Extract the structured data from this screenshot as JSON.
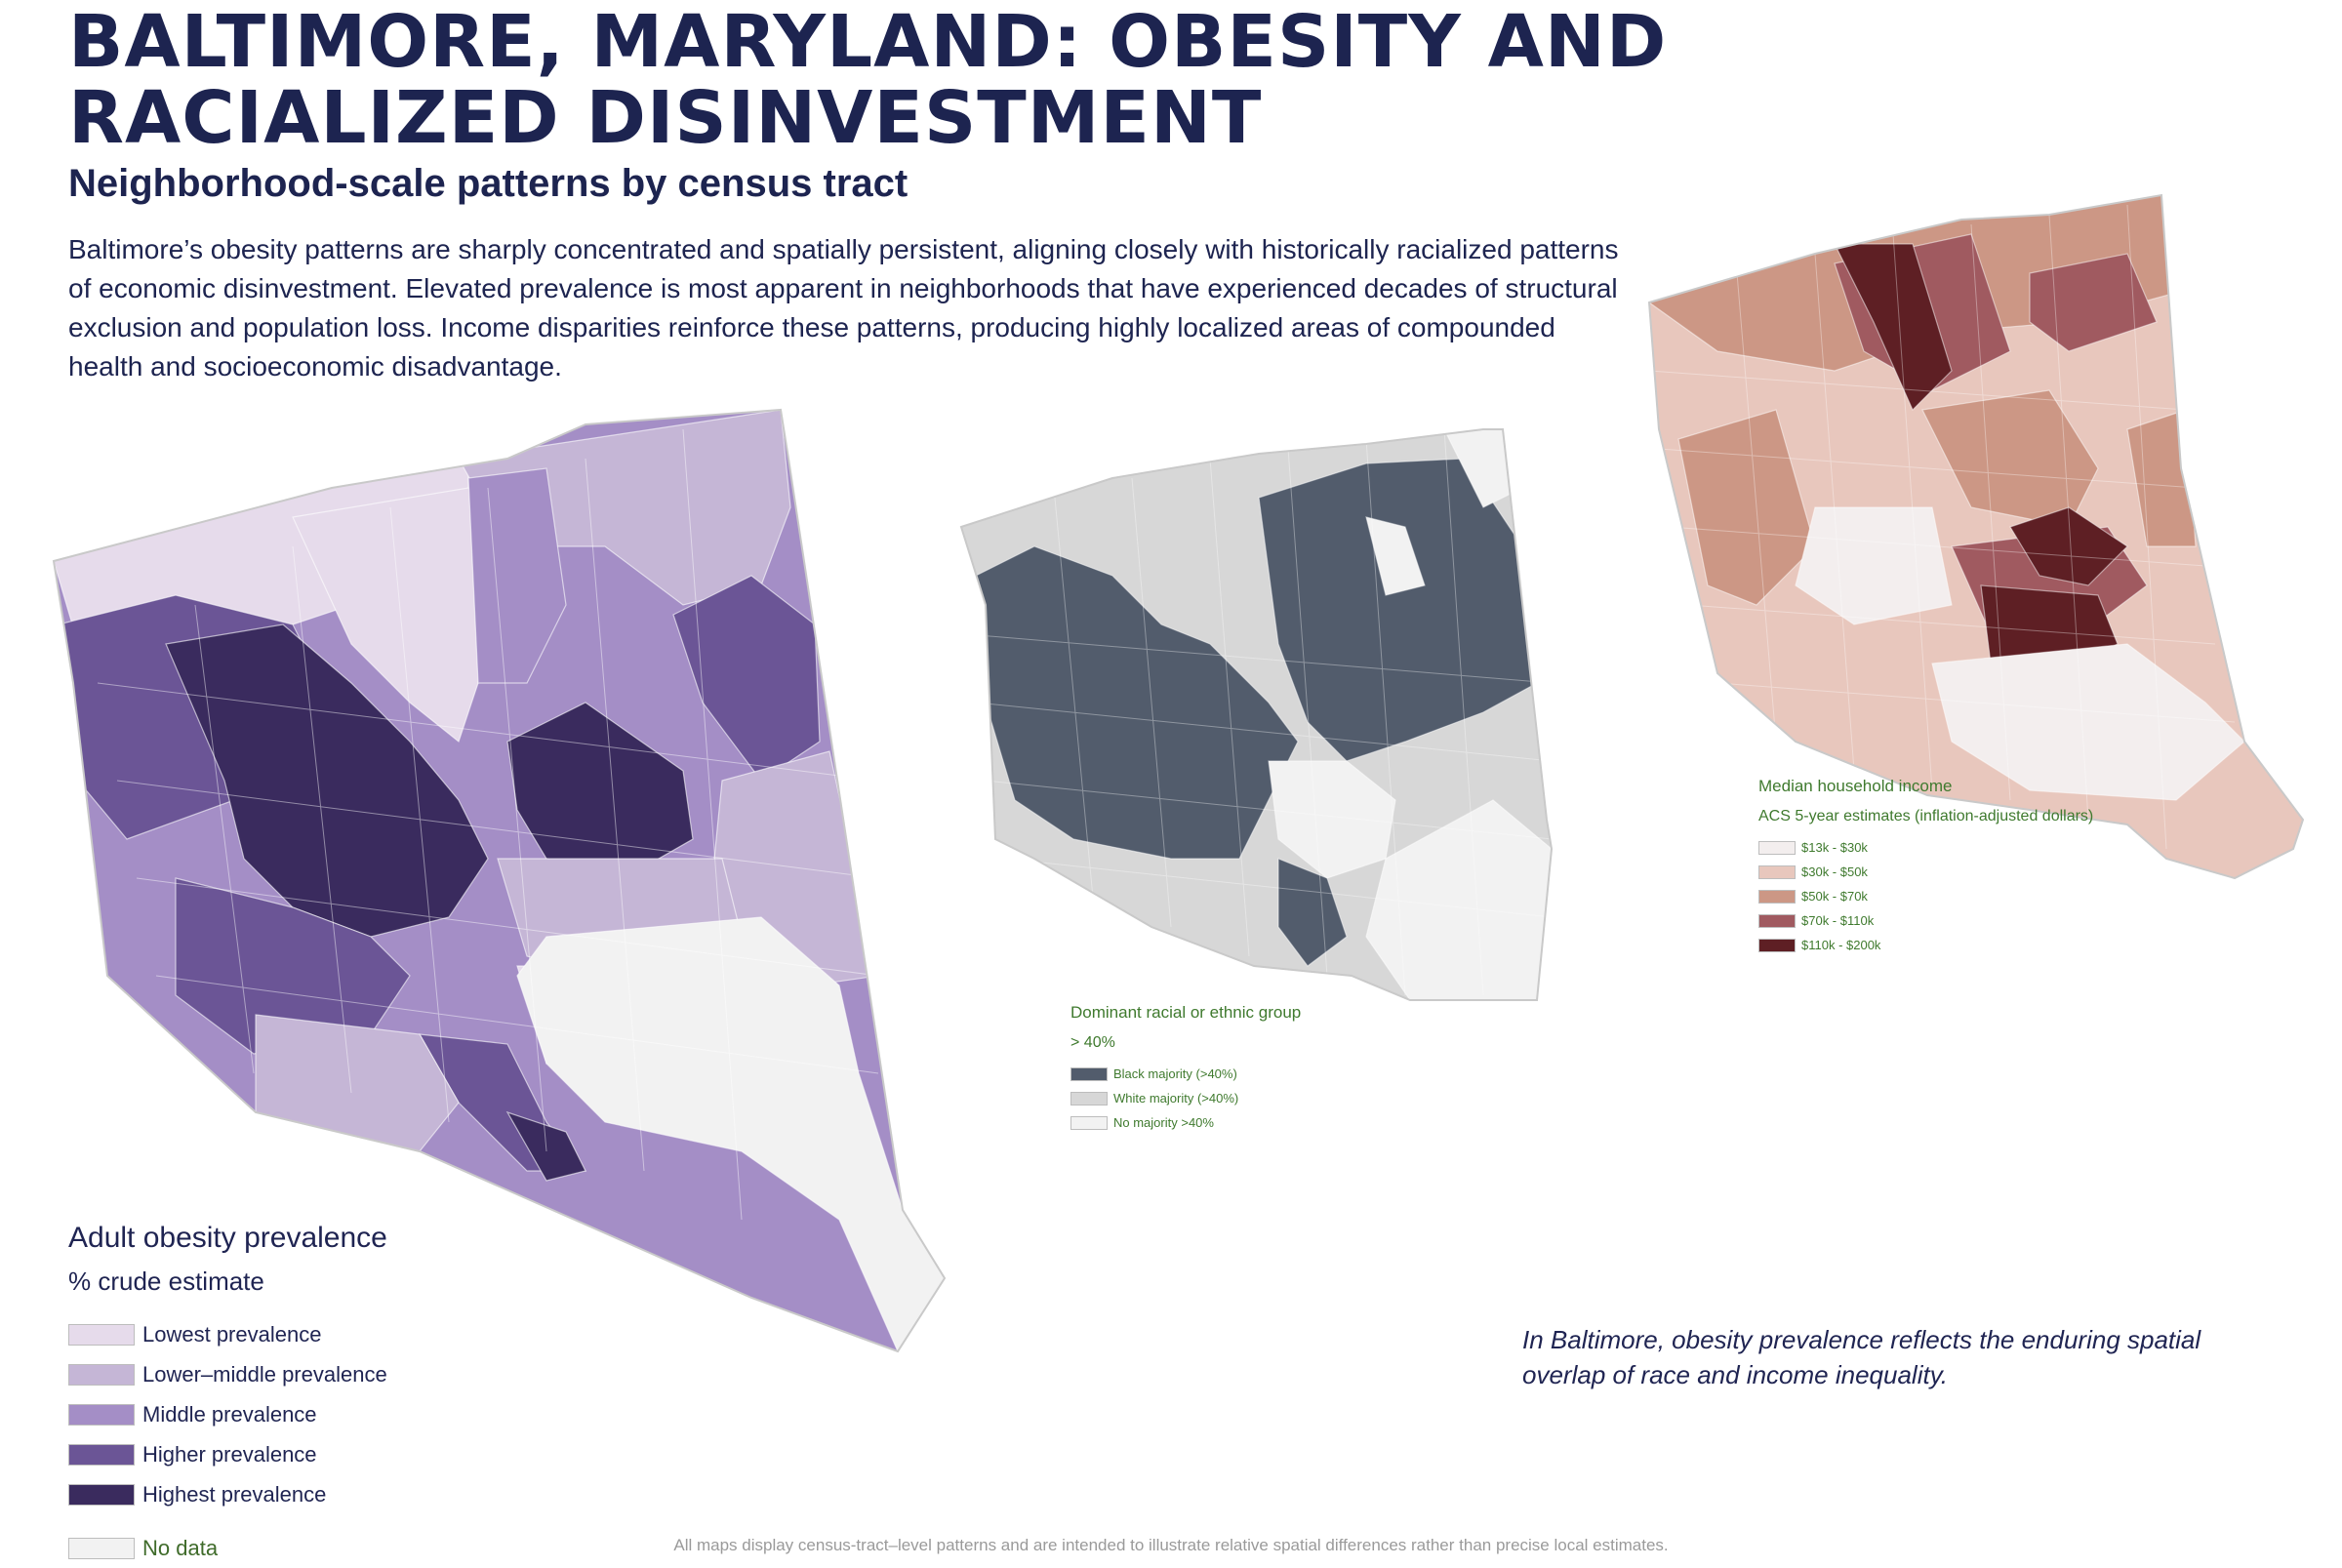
{
  "header": {
    "title": "BALTIMORE, MARYLAND: OBESITY AND RACIALIZED DISINVESTMENT",
    "subtitle": "Neighborhood-scale patterns by census tract",
    "intro": "Baltimore’s obesity patterns are sharply concentrated and spatially persistent, aligning closely with historically racialized patterns of economic disinvestment. Elevated prevalence is most apparent in neighborhoods that have experienced decades of structural exclusion and population loss. Income disparities reinforce these patterns, producing highly localized areas of compounded health and socioeconomic disadvantage."
  },
  "obesity_map": {
    "legend": {
      "title": "Adult obesity prevalence",
      "subtitle": "% crude estimate",
      "classes": [
        {
          "label": "Lowest prevalence",
          "color": "#e6dbeb"
        },
        {
          "label": "Lower–middle prevalence",
          "color": "#c5b6d6"
        },
        {
          "label": "Middle prevalence",
          "color": "#a48ec6"
        },
        {
          "label": "Higher prevalence",
          "color": "#6b5596"
        },
        {
          "label": "Highest prevalence",
          "color": "#3a2b5e"
        }
      ],
      "nodata": {
        "label": "No data",
        "color": "#f2f2f2"
      }
    }
  },
  "race_map": {
    "legend": {
      "title": "Dominant racial or ethnic group",
      "subtitle": "> 40%",
      "classes": [
        {
          "label": "Black majority (>40%)",
          "color": "#525c6c"
        },
        {
          "label": "White majority (>40%)",
          "color": "#d7d7d7"
        },
        {
          "label": "No majority >40%",
          "color": "#f2f2f2"
        }
      ]
    }
  },
  "income_map": {
    "legend": {
      "title": "Median household income",
      "subtitle": "ACS 5-year estimates (inflation-adjusted dollars)",
      "classes": [
        {
          "label": "$13k - $30k",
          "color": "#f3eeee"
        },
        {
          "label": "$30k - $50k",
          "color": "#e8c7bd"
        },
        {
          "label": "$50k - $70k",
          "color": "#cc9785"
        },
        {
          "label": "$70k - $110k",
          "color": "#a05a60"
        },
        {
          "label": "$110k - $200k",
          "color": "#5e1f24"
        }
      ]
    }
  },
  "caption": "In Baltimore, obesity prevalence reflects the enduring spatial overlap of race and income inequality.",
  "footnote": "All maps display census-tract–level patterns and are intended to illustrate relative spatial differences rather than precise local estimates."
}
